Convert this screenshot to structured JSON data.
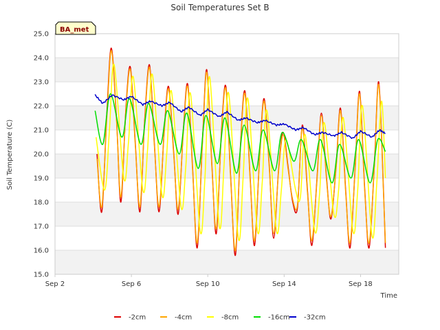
{
  "chart_data": {
    "type": "line",
    "title": "Soil Temperatures Set B",
    "xlabel": "Time",
    "ylabel": "Soil Temperature (C)",
    "badge": "BA_met",
    "xlim": [
      "2024-09-02",
      "2024-09-20"
    ],
    "ylim": [
      15.0,
      25.0
    ],
    "yticks": [
      "15.0",
      "16.0",
      "17.0",
      "18.0",
      "19.0",
      "20.0",
      "21.0",
      "22.0",
      "23.0",
      "24.0",
      "25.0"
    ],
    "xticks": [
      {
        "label": "Sep 2",
        "day": 0
      },
      {
        "label": "Sep 6",
        "day": 4
      },
      {
        "label": "Sep 10",
        "day": 8
      },
      {
        "label": "Sep 14",
        "day": 12
      },
      {
        "label": "Sep 18",
        "day": 16
      }
    ],
    "grid": true,
    "legend_position": "bottom",
    "colors": {
      "plot_band": "#f2f2f2",
      "grid": "#dddddd",
      "axis": "#cccccc"
    },
    "series": [
      {
        "name": "-2cm",
        "color": "#dd0000",
        "x": [
          2.2,
          2.45,
          2.72,
          2.95,
          3.22,
          3.45,
          3.72,
          3.95,
          4.2,
          4.45,
          4.7,
          4.95,
          5.2,
          5.45,
          5.72,
          5.95,
          6.22,
          6.45,
          6.72,
          6.95,
          7.2,
          7.45,
          7.72,
          7.95,
          8.22,
          8.45,
          8.72,
          8.95,
          9.2,
          9.45,
          9.72,
          9.95,
          10.22,
          10.45,
          10.72,
          10.95,
          11.22,
          11.45,
          11.72,
          11.95,
          12.2,
          12.45,
          12.7,
          12.95,
          13.22,
          13.45,
          13.72,
          13.95,
          14.22,
          14.45,
          14.72,
          14.95,
          15.22,
          15.45,
          15.72,
          15.95,
          16.22,
          16.45,
          16.72,
          16.95,
          17.2,
          17.3
        ],
        "y": [
          20.0,
          17.6,
          21.8,
          24.4,
          21.5,
          18.0,
          22.0,
          23.6,
          20.5,
          17.6,
          21.5,
          23.7,
          20.5,
          17.6,
          21.0,
          22.8,
          20.0,
          17.5,
          21.0,
          22.9,
          19.5,
          16.1,
          20.5,
          23.5,
          19.5,
          16.7,
          21.0,
          22.8,
          19.0,
          15.8,
          20.5,
          22.6,
          19.0,
          16.2,
          20.0,
          22.3,
          19.5,
          16.5,
          19.5,
          20.9,
          19.5,
          18.0,
          17.8,
          21.2,
          18.5,
          16.2,
          19.0,
          21.7,
          19.0,
          17.3,
          19.5,
          21.9,
          18.5,
          16.1,
          19.5,
          22.6,
          18.5,
          16.1,
          19.5,
          23.0,
          18.5,
          16.1
        ]
      },
      {
        "name": "-4cm",
        "color": "#ffa500",
        "x": [
          2.2,
          2.45,
          2.72,
          2.95,
          3.22,
          3.45,
          3.72,
          3.95,
          4.2,
          4.45,
          4.7,
          4.95,
          5.2,
          5.45,
          5.72,
          5.95,
          6.22,
          6.45,
          6.72,
          6.95,
          7.2,
          7.45,
          7.72,
          7.95,
          8.22,
          8.45,
          8.72,
          8.95,
          9.2,
          9.45,
          9.72,
          9.95,
          10.22,
          10.45,
          10.72,
          10.95,
          11.22,
          11.45,
          11.72,
          11.95,
          12.2,
          12.45,
          12.7,
          12.95,
          13.22,
          13.45,
          13.72,
          13.95,
          14.22,
          14.45,
          14.72,
          14.95,
          15.22,
          15.45,
          15.72,
          15.95,
          16.22,
          16.45,
          16.72,
          16.95,
          17.2,
          17.3
        ],
        "y": [
          19.8,
          17.8,
          21.6,
          24.3,
          21.4,
          18.2,
          21.9,
          23.5,
          20.4,
          17.8,
          21.4,
          23.6,
          20.4,
          17.8,
          20.9,
          22.7,
          19.9,
          17.7,
          20.9,
          22.8,
          19.4,
          16.3,
          20.4,
          23.4,
          19.4,
          16.9,
          20.9,
          22.7,
          18.9,
          16.0,
          20.4,
          22.5,
          18.9,
          16.4,
          19.9,
          22.2,
          19.4,
          16.7,
          19.4,
          20.8,
          19.4,
          18.1,
          17.9,
          21.1,
          18.4,
          16.4,
          18.9,
          21.6,
          18.9,
          17.4,
          19.4,
          21.8,
          18.4,
          16.3,
          19.4,
          22.5,
          18.4,
          16.3,
          19.4,
          22.9,
          18.4,
          16.3
        ]
      },
      {
        "name": "-8cm",
        "color": "#ffff00",
        "x": [
          2.15,
          2.6,
          2.85,
          3.1,
          3.6,
          3.85,
          4.1,
          4.6,
          4.85,
          5.1,
          5.6,
          5.85,
          6.1,
          6.6,
          6.85,
          7.1,
          7.6,
          7.85,
          8.1,
          8.6,
          8.85,
          9.1,
          9.6,
          9.85,
          10.1,
          10.6,
          10.85,
          11.1,
          11.6,
          11.85,
          12.1,
          12.6,
          12.85,
          13.1,
          13.6,
          13.85,
          14.1,
          14.6,
          14.85,
          15.1,
          15.6,
          15.85,
          16.1,
          16.6,
          16.85,
          17.1,
          17.3
        ],
        "y": [
          20.7,
          18.5,
          21.0,
          23.7,
          19.0,
          20.5,
          23.2,
          18.5,
          20.2,
          23.3,
          18.3,
          20.0,
          22.6,
          17.8,
          19.5,
          22.5,
          16.8,
          19.0,
          23.2,
          17.0,
          19.5,
          22.5,
          16.5,
          19.0,
          22.3,
          16.8,
          18.8,
          21.8,
          16.8,
          18.5,
          20.6,
          18.5,
          18.2,
          20.8,
          16.8,
          18.3,
          21.3,
          17.5,
          18.5,
          21.5,
          16.8,
          18.5,
          22.0,
          16.6,
          18.8,
          22.2,
          19.0
        ]
      },
      {
        "name": "-16cm",
        "color": "#00dd00",
        "x": [
          2.1,
          2.5,
          2.9,
          3.5,
          3.9,
          4.5,
          4.9,
          5.5,
          5.9,
          6.5,
          6.9,
          7.5,
          7.9,
          8.5,
          8.9,
          9.5,
          9.9,
          10.5,
          10.9,
          11.5,
          11.9,
          12.5,
          12.9,
          13.5,
          13.9,
          14.5,
          14.9,
          15.5,
          15.9,
          16.5,
          16.9,
          17.3
        ],
        "y": [
          21.8,
          20.4,
          22.5,
          20.7,
          22.3,
          20.4,
          22.1,
          20.4,
          21.8,
          20.0,
          21.7,
          19.4,
          21.6,
          19.6,
          21.5,
          19.2,
          21.2,
          19.3,
          21.0,
          19.3,
          20.9,
          19.7,
          20.6,
          19.3,
          20.6,
          18.8,
          20.4,
          19.0,
          20.6,
          18.8,
          20.6,
          20.1
        ]
      },
      {
        "name": "-32cm",
        "color": "#0000cc",
        "x": [
          2.1,
          2.5,
          3.0,
          3.6,
          4.0,
          4.6,
          5.0,
          5.6,
          6.0,
          6.6,
          7.0,
          7.6,
          8.0,
          8.6,
          9.0,
          9.6,
          10.0,
          10.6,
          11.0,
          11.6,
          12.0,
          12.6,
          13.0,
          13.6,
          14.0,
          14.6,
          15.0,
          15.6,
          16.0,
          16.6,
          17.0,
          17.3
        ],
        "y": [
          22.45,
          22.1,
          22.45,
          22.25,
          22.4,
          22.05,
          22.2,
          22.0,
          22.15,
          21.75,
          21.95,
          21.6,
          21.85,
          21.55,
          21.75,
          21.4,
          21.5,
          21.3,
          21.4,
          21.2,
          21.25,
          21.0,
          21.1,
          20.8,
          20.9,
          20.75,
          20.9,
          20.65,
          20.95,
          20.7,
          21.0,
          20.85
        ]
      }
    ]
  }
}
